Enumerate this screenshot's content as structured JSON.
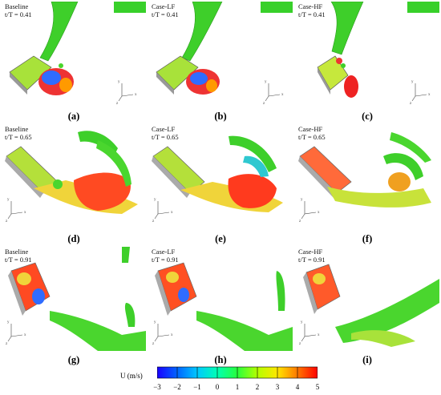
{
  "figure": {
    "panels": [
      {
        "case": "Baseline",
        "time": "t/T = 0.41",
        "label": "(a)"
      },
      {
        "case": "Case-LF",
        "time": "t/T = 0.41",
        "label": "(b)"
      },
      {
        "case": "Case-HF",
        "time": "t/T = 0.41",
        "label": "(c)"
      },
      {
        "case": "Baseline",
        "time": "t/T = 0.65",
        "label": "(d)"
      },
      {
        "case": "Case-LF",
        "time": "t/T = 0.65",
        "label": "(e)"
      },
      {
        "case": "Case-HF",
        "time": "t/T = 0.65",
        "label": "(f)"
      },
      {
        "case": "Baseline",
        "time": "t/T = 0.91",
        "label": "(g)"
      },
      {
        "case": "Case-LF",
        "time": "t/T = 0.91",
        "label": "(h)"
      },
      {
        "case": "Case-HF",
        "time": "t/T = 0.91",
        "label": "(i)"
      }
    ],
    "axes_triad": {
      "y": "y",
      "x": "x",
      "z": "z"
    },
    "colorbar": {
      "title": "U (m/s)",
      "ticks": [
        "−3",
        "−2",
        "−1",
        "0",
        "1",
        "2",
        "3",
        "4",
        "5"
      ],
      "range": [
        -3,
        5
      ],
      "colors": [
        "#1a00ff",
        "#0064ff",
        "#00c8ff",
        "#00ffb4",
        "#28ff3c",
        "#b4ff00",
        "#ffe600",
        "#ff7800",
        "#ff0000"
      ]
    }
  }
}
